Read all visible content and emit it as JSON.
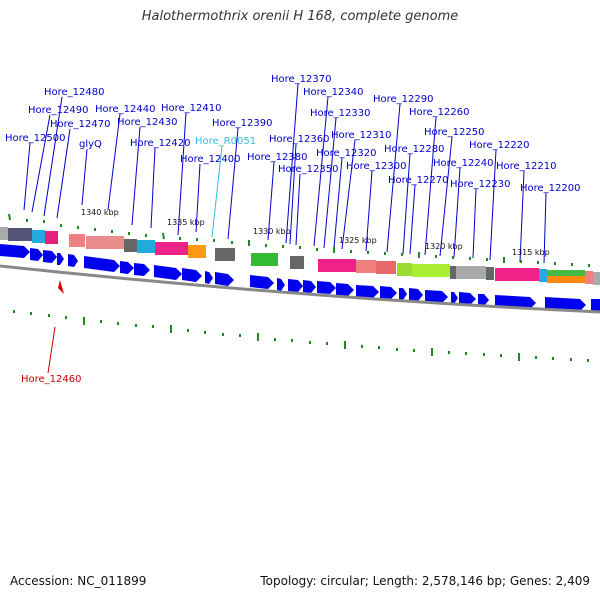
{
  "title": "Halothermothrix orenii H 168, complete genome",
  "accession": "Accession: NC_011899",
  "summary": "Topology: circular; Length: 2,578,146 bp; Genes: 2,409",
  "colors": {
    "gene_label": "#0000cc",
    "rna_label": "#33bbdd",
    "selected_label": "#cc0000",
    "selected_marker": "#dd0000",
    "arrow": "#0000ee",
    "backbone": "#888888",
    "tick": "#228822"
  },
  "kbp_labels": [
    "1340 kbp",
    "1335 kbp",
    "1330 kbp",
    "1325 kbp",
    "1320 kbp",
    "1315 kbp"
  ],
  "gene_labels": [
    {
      "text": "Hore_12480",
      "type": "gene"
    },
    {
      "text": "Hore_12490",
      "type": "gene"
    },
    {
      "text": "Hore_12470",
      "type": "gene"
    },
    {
      "text": "Hore_12500",
      "type": "gene"
    },
    {
      "text": "glyQ",
      "type": "gene"
    },
    {
      "text": "Hore_12440",
      "type": "gene"
    },
    {
      "text": "Hore_12430",
      "type": "gene"
    },
    {
      "text": "Hore_12420",
      "type": "gene"
    },
    {
      "text": "Hore_12410",
      "type": "gene"
    },
    {
      "text": "Hore_R0051",
      "type": "rna"
    },
    {
      "text": "Hore_12400",
      "type": "gene"
    },
    {
      "text": "Hore_12390",
      "type": "gene"
    },
    {
      "text": "Hore_12370",
      "type": "gene"
    },
    {
      "text": "Hore_12340",
      "type": "gene"
    },
    {
      "text": "Hore_12330",
      "type": "gene"
    },
    {
      "text": "Hore_12360",
      "type": "gene"
    },
    {
      "text": "Hore_12380",
      "type": "gene"
    },
    {
      "text": "Hore_12350",
      "type": "gene"
    },
    {
      "text": "Hore_12310",
      "type": "gene"
    },
    {
      "text": "Hore_12320",
      "type": "gene"
    },
    {
      "text": "Hore_12300",
      "type": "gene"
    },
    {
      "text": "Hore_12290",
      "type": "gene"
    },
    {
      "text": "Hore_12260",
      "type": "gene"
    },
    {
      "text": "Hore_12280",
      "type": "gene"
    },
    {
      "text": "Hore_12270",
      "type": "gene"
    },
    {
      "text": "Hore_12250",
      "type": "gene"
    },
    {
      "text": "Hore_12240",
      "type": "gene"
    },
    {
      "text": "Hore_12230",
      "type": "gene"
    },
    {
      "text": "Hore_12220",
      "type": "gene"
    },
    {
      "text": "Hore_12210",
      "type": "gene"
    },
    {
      "text": "Hore_12200",
      "type": "gene"
    }
  ],
  "selected_gene": "Hore_12460"
}
